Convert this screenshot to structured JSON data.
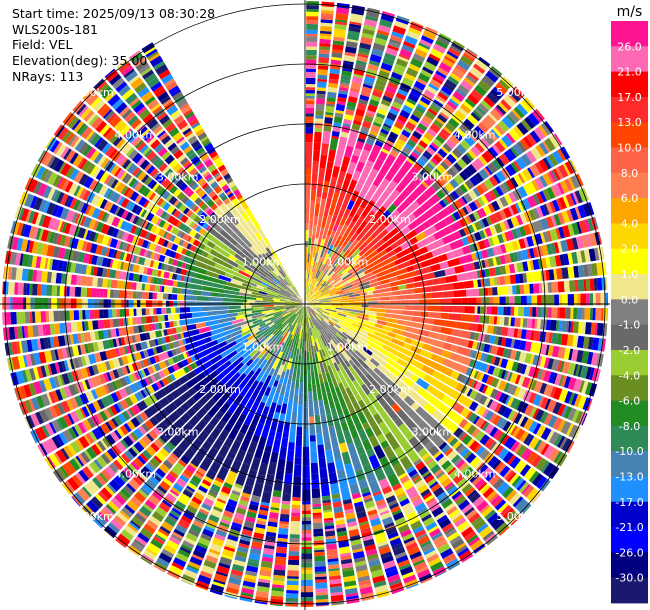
{
  "info": {
    "start_time": "Start time: 2025/09/13 08:30:28",
    "instrument": "WLS200s-181",
    "field": "Field: VEL",
    "elevation": "Elevation(deg): 35.00",
    "nrays": "NRays: 113"
  },
  "chart_data": {
    "type": "heatmap",
    "projection": "polar-ppi",
    "field": "VEL",
    "elevation_deg": 35.0,
    "n_rays": 113,
    "max_range_km": 5.5,
    "range_rings_km": [
      1,
      2,
      3,
      4,
      5
    ],
    "ring_labels": [
      "1.00km",
      "2.00km",
      "3.00km",
      "4.00km",
      "5.00km"
    ],
    "missing_azimuth_sector_deg": [
      330,
      360
    ],
    "noise_beyond_km": {
      "northeast": 2.8,
      "south": 3.2,
      "west": 2.0
    },
    "velocity_pattern": "positive velocities (toward red) to the north-east, negative velocities (toward blue) to the south-west",
    "colorbar": {
      "unit": "m/s",
      "ticks": [
        "26.0",
        "21.0",
        "17.0",
        "13.0",
        "10.0",
        "8.0",
        "6.0",
        "4.0",
        "2.0",
        "1.0",
        "0.0",
        "-1.0",
        "-2.0",
        "-4.0",
        "-6.0",
        "-8.0",
        "-10.0",
        "-13.0",
        "-17.0",
        "-21.0",
        "-26.0",
        "-30.0"
      ],
      "colors": [
        "#ff1493",
        "#ff69b4",
        "#ff0000",
        "#ff2a2a",
        "#ff4500",
        "#ff6347",
        "#ff7f50",
        "#ffa500",
        "#ffd700",
        "#ffff00",
        "#f0e68c",
        "#808080",
        "#696969",
        "#9acd32",
        "#6b8e23",
        "#228b22",
        "#2e8b57",
        "#4682b4",
        "#1e90ff",
        "#0000cd",
        "#0000ff",
        "#000080",
        "#191970"
      ]
    }
  }
}
